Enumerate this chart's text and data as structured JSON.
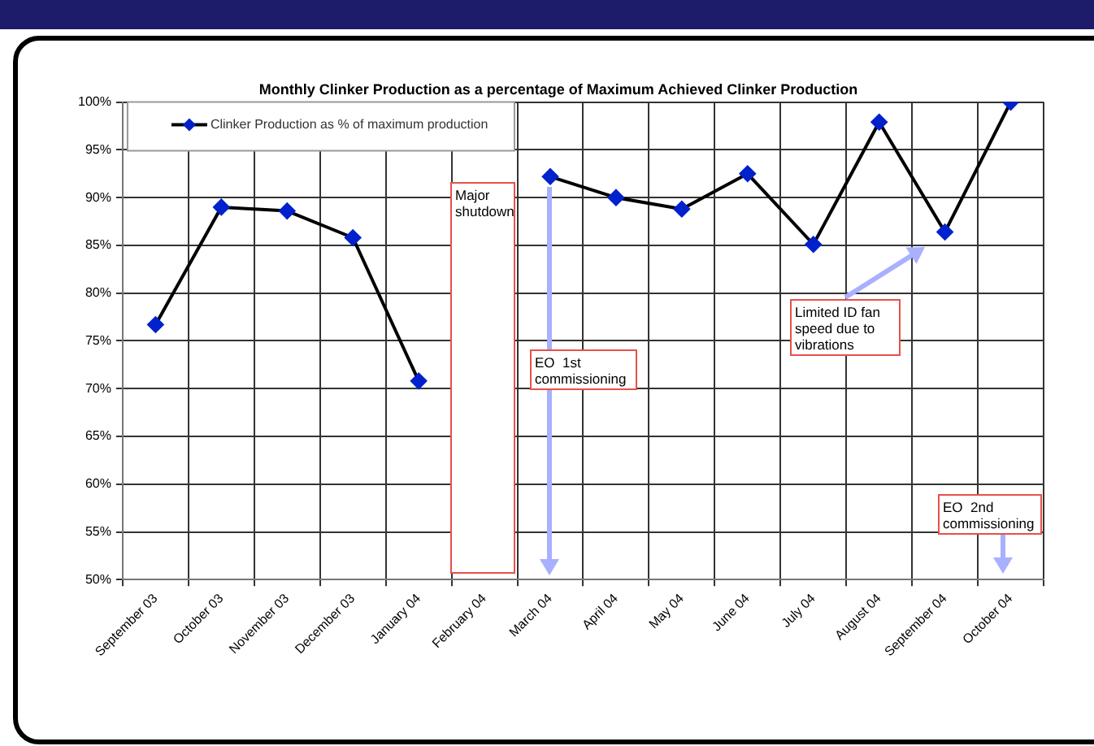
{
  "chart_data": {
    "type": "line",
    "title": "Monthly Clinker Production as a percentage of Maximum Achieved Clinker Production",
    "categories": [
      "September 03",
      "October 03",
      "November 03",
      "December 03",
      "January 04",
      "February 04",
      "March 04",
      "April 04",
      "May 04",
      "June 04",
      "July 04",
      "August 04",
      "September 04",
      "October 04"
    ],
    "series": [
      {
        "name": "Clinker Production as % of maximum production",
        "color": "#000000",
        "colors": [
          "#0022cc",
          "#0022cc",
          "#0022cc",
          "#0022cc",
          "#0022cc",
          "#0022cc",
          "#0022cc",
          "#0022cc",
          "#0022cc",
          "#0022cc",
          "#0022cc",
          "#0022cc",
          "#0022cc",
          "#0022cc"
        ],
        "values": [
          76.7,
          89,
          88.6,
          85.8,
          70.8,
          null,
          92.2,
          90,
          88.8,
          92.5,
          85.1,
          97.9,
          86.4,
          100
        ]
      }
    ],
    "ylim": [
      50,
      100
    ],
    "yticks": [
      {
        "value": 50,
        "label": "50%"
      },
      {
        "value": 55,
        "label": "55%"
      },
      {
        "value": 60,
        "label": "60%"
      },
      {
        "value": 65,
        "label": "65%"
      },
      {
        "value": 70,
        "label": "70%"
      },
      {
        "value": 75,
        "label": "75%"
      },
      {
        "value": 80,
        "label": "80%"
      },
      {
        "value": 85,
        "label": "85%"
      },
      {
        "value": 90,
        "label": "90%"
      },
      {
        "value": 95,
        "label": "95%"
      },
      {
        "value": 100,
        "label": "100%"
      }
    ],
    "annotations": [
      "Major shutdown",
      "EO  1st commissioning",
      "Limited ID fan speed due to vibrations",
      "EO  2nd commissioning"
    ],
    "grid": true,
    "legend": "top left",
    "marker": "diamond",
    "line_style": "solid"
  }
}
